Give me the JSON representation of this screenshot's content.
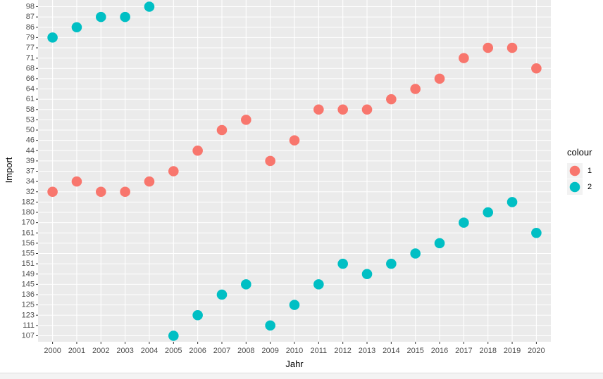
{
  "chart_data": {
    "type": "scatter",
    "xlabel": "Jahr",
    "ylabel": "Import",
    "x_ticks": [
      "2000",
      "2001",
      "2002",
      "2003",
      "2004",
      "2005",
      "2006",
      "2007",
      "2008",
      "2009",
      "2010",
      "2011",
      "2012",
      "2013",
      "2014",
      "2015",
      "2016",
      "2017",
      "2018",
      "2019",
      "2020"
    ],
    "y_ticks": [
      "107",
      "111",
      "123",
      "125",
      "136",
      "145",
      "149",
      "151",
      "155",
      "156",
      "161",
      "170",
      "180",
      "182",
      "32",
      "34",
      "37",
      "39",
      "44",
      "46",
      "50",
      "53",
      "58",
      "61",
      "64",
      "66",
      "68",
      "71",
      "77",
      "79",
      "86",
      "87",
      "98"
    ],
    "y_axis_note": "discrete (character) y-axis, levels sorted as text",
    "grid": true,
    "legend": {
      "title": "colour",
      "position": "right"
    },
    "series": [
      {
        "name": "1",
        "color": "#F8766D",
        "points": [
          {
            "x": "2000",
            "y": "32"
          },
          {
            "x": "2001",
            "y": "34"
          },
          {
            "x": "2002",
            "y": "32"
          },
          {
            "x": "2003",
            "y": "32"
          },
          {
            "x": "2004",
            "y": "34"
          },
          {
            "x": "2005",
            "y": "37"
          },
          {
            "x": "2006",
            "y": "44"
          },
          {
            "x": "2007",
            "y": "50"
          },
          {
            "x": "2008",
            "y": "53"
          },
          {
            "x": "2009",
            "y": "39"
          },
          {
            "x": "2010",
            "y": "46"
          },
          {
            "x": "2011",
            "y": "58"
          },
          {
            "x": "2012",
            "y": "58"
          },
          {
            "x": "2013",
            "y": "58"
          },
          {
            "x": "2014",
            "y": "61"
          },
          {
            "x": "2015",
            "y": "64"
          },
          {
            "x": "2016",
            "y": "66"
          },
          {
            "x": "2017",
            "y": "71"
          },
          {
            "x": "2018",
            "y": "77"
          },
          {
            "x": "2019",
            "y": "77"
          },
          {
            "x": "2020",
            "y": "68"
          }
        ]
      },
      {
        "name": "2",
        "color": "#00BFC4",
        "points": [
          {
            "x": "2000",
            "y": "79"
          },
          {
            "x": "2001",
            "y": "86"
          },
          {
            "x": "2002",
            "y": "87"
          },
          {
            "x": "2003",
            "y": "87"
          },
          {
            "x": "2004",
            "y": "98"
          },
          {
            "x": "2005",
            "y": "107"
          },
          {
            "x": "2006",
            "y": "123"
          },
          {
            "x": "2007",
            "y": "136"
          },
          {
            "x": "2008",
            "y": "145"
          },
          {
            "x": "2009",
            "y": "111"
          },
          {
            "x": "2010",
            "y": "125"
          },
          {
            "x": "2011",
            "y": "145"
          },
          {
            "x": "2012",
            "y": "151"
          },
          {
            "x": "2013",
            "y": "149"
          },
          {
            "x": "2014",
            "y": "151"
          },
          {
            "x": "2015",
            "y": "155"
          },
          {
            "x": "2016",
            "y": "156"
          },
          {
            "x": "2017",
            "y": "170"
          },
          {
            "x": "2018",
            "y": "180"
          },
          {
            "x": "2019",
            "y": "182"
          },
          {
            "x": "2020",
            "y": "161"
          }
        ]
      }
    ]
  }
}
